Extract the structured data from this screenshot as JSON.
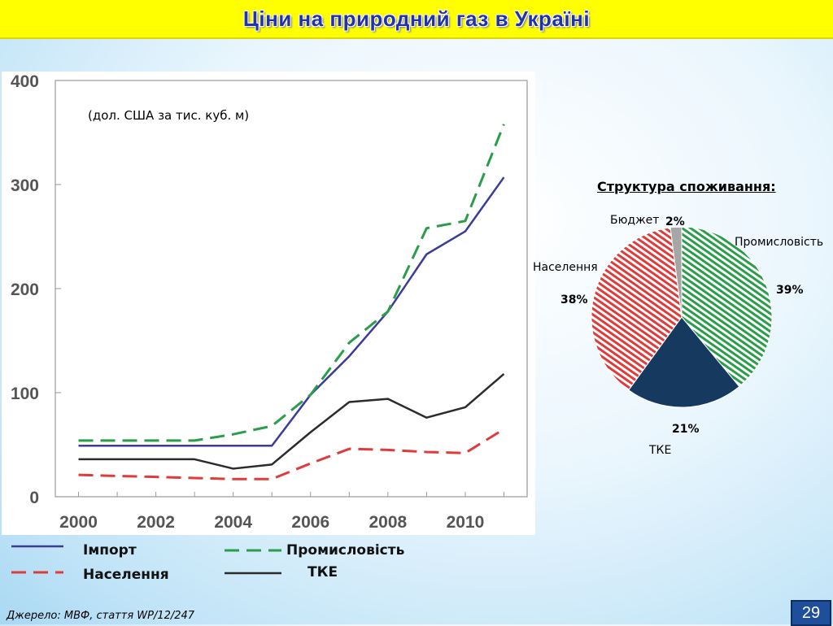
{
  "title": "Ціни на природний газ в Україні",
  "unit_note": "(дол. США за тис. куб. м)",
  "legend": {
    "import": "Імпорт",
    "industry": "Промисловість",
    "population": "Населення",
    "tke": "ТКЕ"
  },
  "pie_title": "Структура споживання:",
  "pie_labels": {
    "budget": "Бюджет",
    "budget_pct": "2%",
    "industry": "Промисловість",
    "industry_pct": "39%",
    "population": "Населення",
    "population_pct": "38%",
    "tke_pct": "21%",
    "tke": "ТКЕ"
  },
  "source": "Джерело: МВФ, стаття WP/12/247",
  "page_number": "29",
  "colors": {
    "import": "#3b3b9a",
    "industry": "#2a9d4a",
    "population": "#e03b3b",
    "tke": "#2b2b2b",
    "pie_tke": "#163a5f",
    "pie_budget": "#a6a6a6"
  },
  "chart_data": [
    {
      "type": "line",
      "x": [
        2000,
        2001,
        2002,
        2003,
        2004,
        2005,
        2006,
        2007,
        2008,
        2009,
        2010,
        2011
      ],
      "xticks": [
        "2000",
        "2002",
        "2004",
        "2006",
        "2008",
        "2010"
      ],
      "yticks": [
        "0",
        "100",
        "200",
        "300",
        "400"
      ],
      "ylim": [
        0,
        400
      ],
      "xlim": [
        1999.4,
        2011.6
      ],
      "series": [
        {
          "name": "Імпорт",
          "key": "import",
          "values": [
            49,
            49,
            49,
            49,
            49,
            49,
            98,
            135,
            178,
            233,
            255,
            307
          ]
        },
        {
          "name": "Промисловість",
          "key": "industry",
          "values": [
            54,
            54,
            54,
            54,
            60,
            68,
            98,
            148,
            178,
            258,
            265,
            358
          ]
        },
        {
          "name": "Населення",
          "key": "population",
          "values": [
            21,
            20,
            19,
            18,
            17,
            17,
            32,
            46,
            45,
            43,
            42,
            65
          ]
        },
        {
          "name": "ТКЕ",
          "key": "tke",
          "values": [
            36,
            36,
            36,
            36,
            27,
            31,
            62,
            91,
            94,
            76,
            86,
            118
          ]
        }
      ]
    },
    {
      "type": "pie",
      "title": "Структура споживання:",
      "slices": [
        {
          "label": "Промисловість",
          "value": 39
        },
        {
          "label": "ТКЕ",
          "value": 21
        },
        {
          "label": "Населення",
          "value": 38
        },
        {
          "label": "Бюджет",
          "value": 2
        }
      ]
    }
  ]
}
